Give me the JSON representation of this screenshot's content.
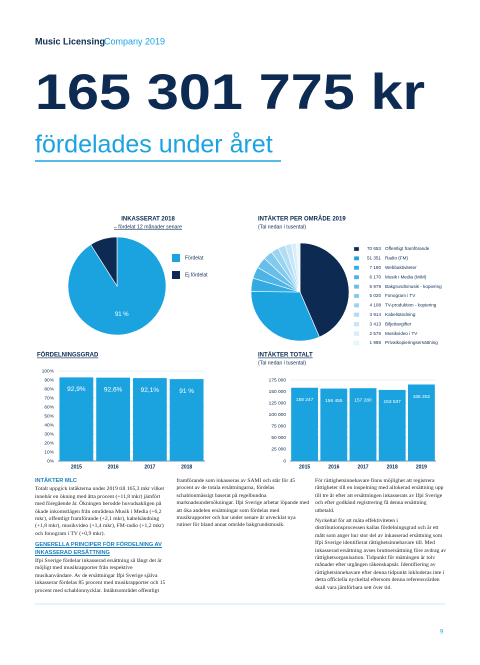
{
  "header": {
    "brand": "Music Licensing",
    "brand_suffix": "Company 2019",
    "headline": "165 301 775 kr",
    "subheadline": "fördelades under året"
  },
  "chart_data": [
    {
      "type": "pie",
      "title": "INKASSERAT 2018",
      "subtitle": "– fördelat 12 månader senare",
      "categories": [
        "Fördelat",
        "Ej fördelat"
      ],
      "values": [
        91,
        9
      ],
      "value_labels": [
        "91 %",
        null
      ],
      "colors": [
        "#1ba3e0",
        "#0d2b52"
      ]
    },
    {
      "type": "pie",
      "title": "INTÄKTER PER OMRÅDE 2019",
      "subtitle": "(Tal nedan i tusental)",
      "categories": [
        "Offentligt framförande",
        "Radio (FM)",
        "Webbaktiviteter",
        "Musik i Media (MIM)",
        "Bakgrundsmusik - kopiering",
        "Fonogram i TV",
        "TV-produktion - kopiering",
        "Kabelsändning",
        "Biljettavgifter",
        "Musikvideo i TV",
        "Privatkopieringsersättning"
      ],
      "values": [
        70653,
        51351,
        7180,
        6170,
        5979,
        5020,
        4108,
        3914,
        3413,
        2576,
        1988
      ],
      "value_labels": [
        "70 653",
        "51 351",
        "7 180",
        "6 170",
        "5 979",
        "5 020",
        "4 108",
        "3 914",
        "3 413",
        "2 576",
        "1 988"
      ],
      "colors": [
        "#0d2b52",
        "#1ba3e0",
        "#33abe2",
        "#4db5e6",
        "#67bfe9",
        "#82caed",
        "#9ad4f0",
        "#b0ddf3",
        "#c5e6f6",
        "#d8eff9",
        "#eaf6fc"
      ]
    },
    {
      "type": "bar",
      "title": "FÖRDELNINGSGRAD",
      "categories": [
        "2015",
        "2016",
        "2017",
        "2018"
      ],
      "values": [
        92.9,
        92.6,
        92.1,
        91
      ],
      "value_labels": [
        "92,9%",
        "92,6%",
        "92,1%",
        "91 %"
      ],
      "color": "#1ba3e0",
      "ylim": [
        0,
        100
      ],
      "grid": true,
      "yticks": [
        {
          "value": 0,
          "label": "0%"
        },
        {
          "value": 10,
          "label": "10%"
        },
        {
          "value": 20,
          "label": "20%"
        },
        {
          "value": 30,
          "label": "30%"
        },
        {
          "value": 40,
          "label": "40%"
        },
        {
          "value": 50,
          "label": "50%"
        },
        {
          "value": 60,
          "label": "60%"
        },
        {
          "value": 70,
          "label": "70%"
        },
        {
          "value": 80,
          "label": "80%"
        },
        {
          "value": 90,
          "label": "90%"
        },
        {
          "value": 100,
          "label": "100%"
        }
      ]
    },
    {
      "type": "bar",
      "title": "INTÄKTER TOTALT",
      "subtitle": "(Tal nedan i tusental)",
      "categories": [
        "2015",
        "2016",
        "2017",
        "2018",
        "2019"
      ],
      "values": [
        158247,
        156455,
        157280,
        153537,
        165302
      ],
      "value_labels": [
        "158 247",
        "156 455",
        "157 280",
        "153 537",
        "165 302"
      ],
      "color": "#1ba3e0",
      "ylim": [
        0,
        175000
      ],
      "grid": true,
      "yticks": [
        0,
        {
          "value": 25000,
          "label": "25 000"
        },
        {
          "value": 50000,
          "label": "50 000"
        },
        {
          "value": 75000,
          "label": "75 000"
        },
        {
          "value": 100000,
          "label": "100 000"
        },
        {
          "value": 125000,
          "label": "125 000"
        },
        {
          "value": 150000,
          "label": "150 000"
        },
        {
          "value": 175000,
          "label": "175 000"
        }
      ]
    }
  ],
  "article": {
    "heading_1": "INTÄKTER MLC",
    "paragraph_1": "Totalt uppgick intäkterna under 2019 till 165,3 mkr vilket innebär en ökning med åtta procent (+11,8 mkr) jämfört med föregående år. Ökningen berodde huvudsakligen på ökade inkomstlägen från områdena Musik i Media (+6,2 mkr), offentligt framförande (+2,1 mkr), kabelsändning (+1,8 mkr), musikvideo (+1,4 mkr), FM-radio (+1,2 mkr) och fonogram i TV (+0,9 mkr).",
    "heading_2": "GENERELLA PRINCIPER FÖR FÖRDELNING AV INKASSERAD ERSÄTTNING",
    "paragraph_2": "Ifpi Sverige fördelar inkasserad ersättning så långt det är möjligt med musikrapporter från respektive musikanvändare. Av de ersättningar Ifpi Sverige själva inkasserar fördelas 85 procent med musikrapporter och 15 procent med schablonnycklar. Intäktsområdet offentligt framförande som inkasseras av SAMI och står för 45 procent av de totala ersättningarna, fördelas schablonmässigt baserat på regelbundna marknadsundersökningar. Ifpi Sverige arbetar löpande med att öka andelen ersättningar som fördelas med musikrapporter och har under senare år utvecklat nya rutiner för bland annat område bakgrundsmusik.",
    "paragraph_3": "För rättighetsinnehavare finns möjlighet att registrera rättigheter till en inspelning med allokerad ersättning upp till tre år efter att ersättningen inkasserats av Ifpi Sverige och efter godkänd registrering få denna ersättning utbetald.",
    "paragraph_4": "Nyckeltal för att mäta effektiviteten i distributionsprocessen kallas fördelningsgrad och är ett mått som anger hur stor del av inkasserad ersättning som Ifpi Sverige identifierat rättighetsinnehavare till. Med inkasserad ersättning avses bruttoersättning före avdrag av rättighetsorganisation. Tidpunkt för mätningen är tolv månader efter utgången räkenskapsår. Identifiering av rättighetsinnehavare efter denna tidpunkt inkluderas inte i detta officiella nyckeltal eftersom denna referensvärden skall vara jämförbara sett över tid."
  },
  "page_number": "9"
}
